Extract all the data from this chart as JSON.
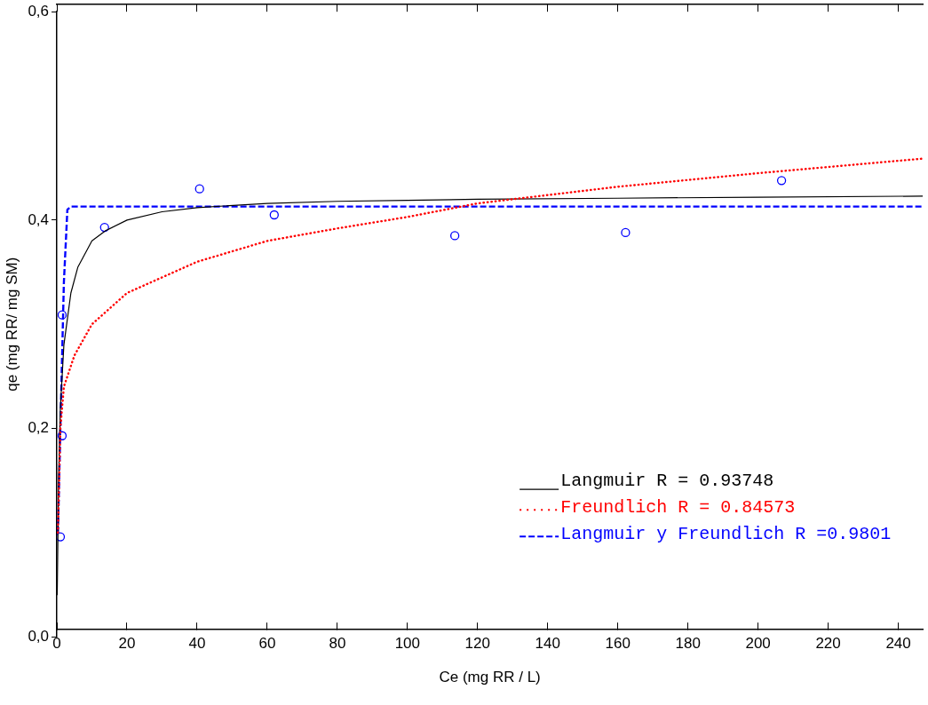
{
  "chart_data": {
    "type": "scatter",
    "xlabel": "Ce (mg RR / L)",
    "ylabel": "qe (mg RR/ mg SM)",
    "xlim": [
      0,
      247
    ],
    "xticks": [
      0,
      20,
      40,
      60,
      80,
      100,
      120,
      140,
      160,
      180,
      200,
      220,
      240
    ],
    "ylim": [
      0,
      0.6
    ],
    "yticks": [
      {
        "value": 0,
        "label": "0,0"
      },
      {
        "value": 0.2,
        "label": "0,2"
      },
      {
        "value": 0.4,
        "label": "0,4"
      },
      {
        "value": 0.6,
        "label": "0,6"
      }
    ],
    "grid": false,
    "legend": "bottom right",
    "marker": "circle",
    "series": [
      {
        "color": "#0000ff",
        "x": [
          1,
          1.5,
          1.5,
          13.6,
          40.7,
          62,
          113.5,
          162.2,
          206.7
        ],
        "values": [
          0.096,
          0.193,
          0.309,
          0.393,
          0.43,
          0.405,
          0.385,
          0.388,
          0.438
        ]
      },
      {
        "type": "line",
        "name": "Langmuir R = 0.93748",
        "color": "#000000",
        "line_style": "solid",
        "marker": "none",
        "x": [
          0.1,
          0.5,
          1,
          2,
          4,
          6,
          10,
          14,
          20,
          30,
          40,
          60,
          80,
          100,
          120,
          160,
          200,
          247
        ],
        "values": [
          0.04,
          0.15,
          0.22,
          0.28,
          0.33,
          0.355,
          0.38,
          0.39,
          0.4,
          0.408,
          0.412,
          0.416,
          0.418,
          0.419,
          0.42,
          0.421,
          0.422,
          0.423
        ]
      },
      {
        "type": "line",
        "name": "Freundlich R = 0.84573",
        "color": "#ff0000",
        "line_style": "dotted",
        "marker": "none",
        "x": [
          0.3,
          1,
          2,
          5,
          10,
          20,
          40,
          60,
          80,
          100,
          120,
          160,
          200,
          247
        ],
        "values": [
          0.1,
          0.2,
          0.24,
          0.27,
          0.3,
          0.33,
          0.36,
          0.38,
          0.392,
          0.403,
          0.416,
          0.432,
          0.445,
          0.459
        ]
      },
      {
        "type": "line",
        "name": "Langmuir y Freundlich R =0.9801",
        "color": "#0000ff",
        "line_style": "dashed",
        "marker": "none",
        "x": [
          0.3,
          1,
          2,
          3,
          4,
          247
        ],
        "values": [
          0.1,
          0.2,
          0.34,
          0.41,
          0.413,
          0.413
        ]
      }
    ]
  }
}
